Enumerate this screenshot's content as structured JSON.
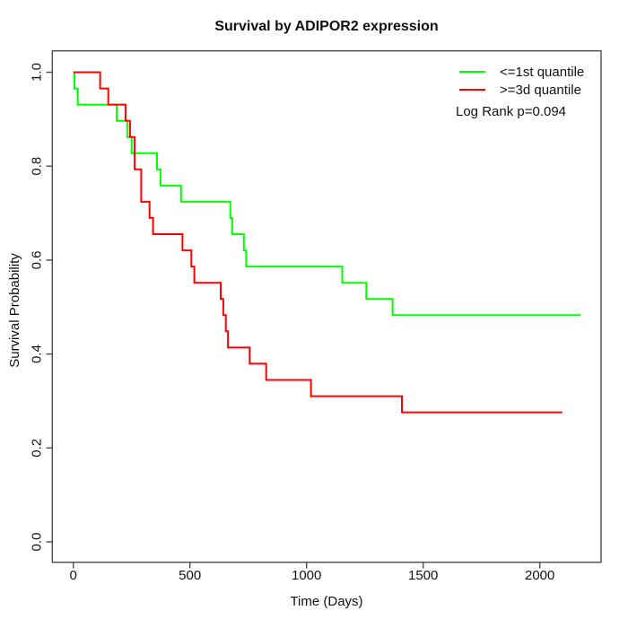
{
  "chart_data": {
    "type": "line",
    "subtype": "kaplan-meier-step",
    "title": "Survival by ADIPOR2 expression",
    "xlabel": "Time (Days)",
    "ylabel": "Survival Probability",
    "x_ticks": [
      "0",
      "500",
      "1000",
      "1500",
      "2000"
    ],
    "y_ticks": [
      "0.0",
      "0.2",
      "0.4",
      "0.6",
      "0.8",
      "1.0"
    ],
    "xlim": [
      -90,
      2265
    ],
    "ylim": [
      -0.043,
      1.046
    ],
    "grid": false,
    "box": true,
    "annotation": "Log Rank p=0.094",
    "legend": {
      "position": "top-right",
      "entries": [
        {
          "label": "<=1st quantile",
          "color": "#00FF00"
        },
        {
          "label": ">=3d quantile",
          "color": "#FF0000"
        }
      ]
    },
    "series": [
      {
        "name": "<=1st quantile",
        "color": "#00FF00",
        "step": true,
        "points": [
          [
            0,
            1.0
          ],
          [
            5,
            0.9655
          ],
          [
            19,
            0.931
          ],
          [
            186,
            0.8966
          ],
          [
            231,
            0.8621
          ],
          [
            250,
            0.8276
          ],
          [
            359,
            0.7931
          ],
          [
            374,
            0.7586
          ],
          [
            462,
            0.7241
          ],
          [
            673,
            0.6897
          ],
          [
            681,
            0.6552
          ],
          [
            731,
            0.6207
          ],
          [
            741,
            0.5862
          ],
          [
            1153,
            0.5517
          ],
          [
            1256,
            0.5172
          ],
          [
            1369,
            0.4828
          ],
          [
            2175,
            0.4828
          ]
        ]
      },
      {
        "name": ">=3d quantile",
        "color": "#FF0000",
        "step": true,
        "points": [
          [
            0,
            1.0
          ],
          [
            115,
            0.9655
          ],
          [
            150,
            0.931
          ],
          [
            224,
            0.8966
          ],
          [
            243,
            0.8621
          ],
          [
            263,
            0.7931
          ],
          [
            291,
            0.7241
          ],
          [
            327,
            0.6897
          ],
          [
            342,
            0.6552
          ],
          [
            468,
            0.6207
          ],
          [
            506,
            0.5862
          ],
          [
            519,
            0.5517
          ],
          [
            632,
            0.5172
          ],
          [
            643,
            0.4828
          ],
          [
            654,
            0.4483
          ],
          [
            663,
            0.4138
          ],
          [
            756,
            0.3793
          ],
          [
            827,
            0.3448
          ],
          [
            1019,
            0.3103
          ],
          [
            1409,
            0.2759
          ],
          [
            2096,
            0.2759
          ]
        ]
      }
    ]
  }
}
